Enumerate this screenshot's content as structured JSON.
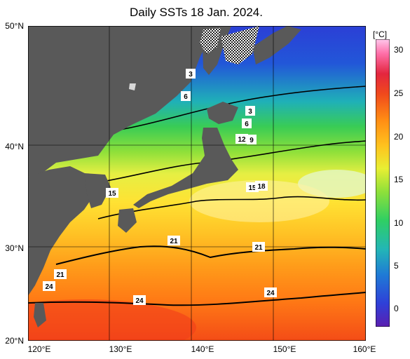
{
  "title": "Daily SSTs 18 Jan. 2024.",
  "lat_labels": [
    "50°N",
    "40°N",
    "30°N",
    "20°N"
  ],
  "lon_labels": [
    "120°E",
    "130°E",
    "140°E",
    "150°E",
    "160°E"
  ],
  "colorbar": {
    "unit": "[°C]",
    "ticks": [
      "30",
      "25",
      "20",
      "15",
      "10",
      "5",
      "0"
    ],
    "colors": [
      "#5b1fb0",
      "#2f3fd8",
      "#1f7ad6",
      "#23b6b6",
      "#2fcf63",
      "#8fe03a",
      "#e8ef33",
      "#ffc21e",
      "#ff8c14",
      "#f0491c",
      "#e3263f",
      "#ff6fa8",
      "#ffc8ec"
    ]
  },
  "contour_labels": [
    {
      "text": "3"
    },
    {
      "text": "6"
    },
    {
      "text": "3"
    },
    {
      "text": "6"
    },
    {
      "text": "12"
    },
    {
      "text": "9"
    },
    {
      "text": "15"
    },
    {
      "text": "18"
    },
    {
      "text": "15"
    },
    {
      "text": "21"
    },
    {
      "text": "21"
    },
    {
      "text": "21"
    },
    {
      "text": "24"
    },
    {
      "text": "24"
    },
    {
      "text": "24"
    }
  ]
}
